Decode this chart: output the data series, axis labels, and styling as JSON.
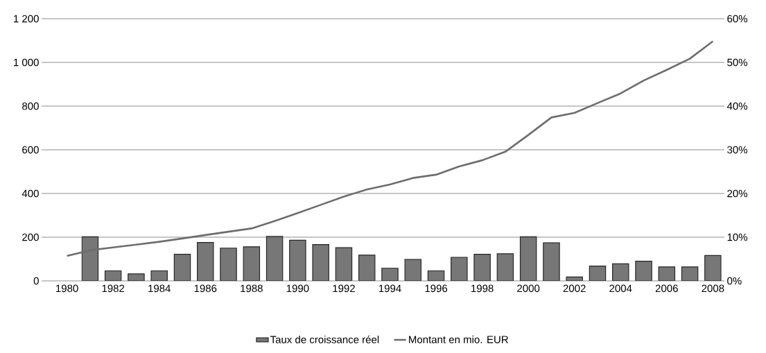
{
  "chart_data": {
    "type": "bar",
    "categories": [
      "1980",
      null,
      "1982",
      null,
      "1984",
      null,
      "1986",
      null,
      "1988",
      null,
      "1990",
      null,
      "1992",
      null,
      "1994",
      null,
      "1996",
      null,
      "1998",
      null,
      "2000",
      null,
      "2002",
      null,
      "2004",
      null,
      "2006",
      null,
      "2008"
    ],
    "series": [
      {
        "name": "Taux de croissance réel",
        "axis": "y2",
        "color": "#777777",
        "values": [
          null,
          10.1,
          2.3,
          1.6,
          2.3,
          6.1,
          8.8,
          7.5,
          7.8,
          10.2,
          9.3,
          8.3,
          7.6,
          5.9,
          2.9,
          4.9,
          2.3,
          5.4,
          6.1,
          6.2,
          10.1,
          8.7,
          0.9,
          3.4,
          3.9,
          4.5,
          3.2,
          3.2,
          5.8
        ]
      },
      {
        "name": "Montant en mio. EUR",
        "type": "line",
        "axis": "y",
        "color": "#6d6d6d",
        "values": [
          114,
          140,
          153,
          166,
          179,
          194,
          210,
          225,
          240,
          274,
          310,
          348,
          386,
          418,
          441,
          471,
          486,
          524,
          552,
          591,
          668,
          748,
          769,
          814,
          858,
          917,
          966,
          1017,
          1097
        ]
      }
    ],
    "ylim": [
      0,
      1200
    ],
    "yticks": [
      0,
      200,
      400,
      600,
      800,
      {
        "value": 1000,
        "label": "1 000"
      },
      {
        "value": 1200,
        "label": "1 200"
      }
    ],
    "y2lim": [
      0,
      60
    ],
    "y2ticks": [
      {
        "value": 0,
        "label": "0%"
      },
      {
        "value": 10,
        "label": "10%"
      },
      {
        "value": 20,
        "label": "20%"
      },
      {
        "value": 30,
        "label": "30%"
      },
      {
        "value": 40,
        "label": "40%"
      },
      {
        "value": 50,
        "label": "50%"
      },
      {
        "value": 60,
        "label": "60%"
      }
    ],
    "grid": "y",
    "legend": "bottom"
  }
}
